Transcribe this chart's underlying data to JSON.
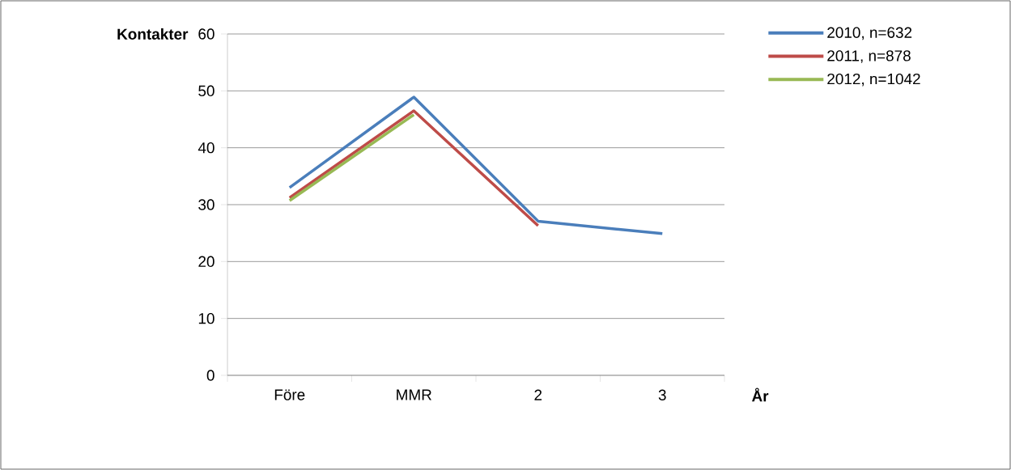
{
  "chart_data": {
    "type": "line",
    "ylabel": "Kontakter",
    "xlabel": "År",
    "categories": [
      "Före",
      "MMR",
      "2",
      "3"
    ],
    "series": [
      {
        "name": "2010, n=632",
        "color": "#4a7ebb",
        "values": [
          33,
          48.9,
          27.1,
          24.9
        ]
      },
      {
        "name": "2011, n=878",
        "color": "#be4b48",
        "values": [
          31.2,
          46.5,
          26.3,
          null
        ]
      },
      {
        "name": "2012, n=1042",
        "color": "#98b954",
        "values": [
          30.7,
          45.8,
          null,
          null
        ]
      }
    ],
    "ylim": [
      0,
      60
    ],
    "yticks": [
      0,
      10,
      20,
      30,
      40,
      50,
      60
    ],
    "grid": "y",
    "legend": "top right",
    "line_style": "solid",
    "marker": "none"
  }
}
